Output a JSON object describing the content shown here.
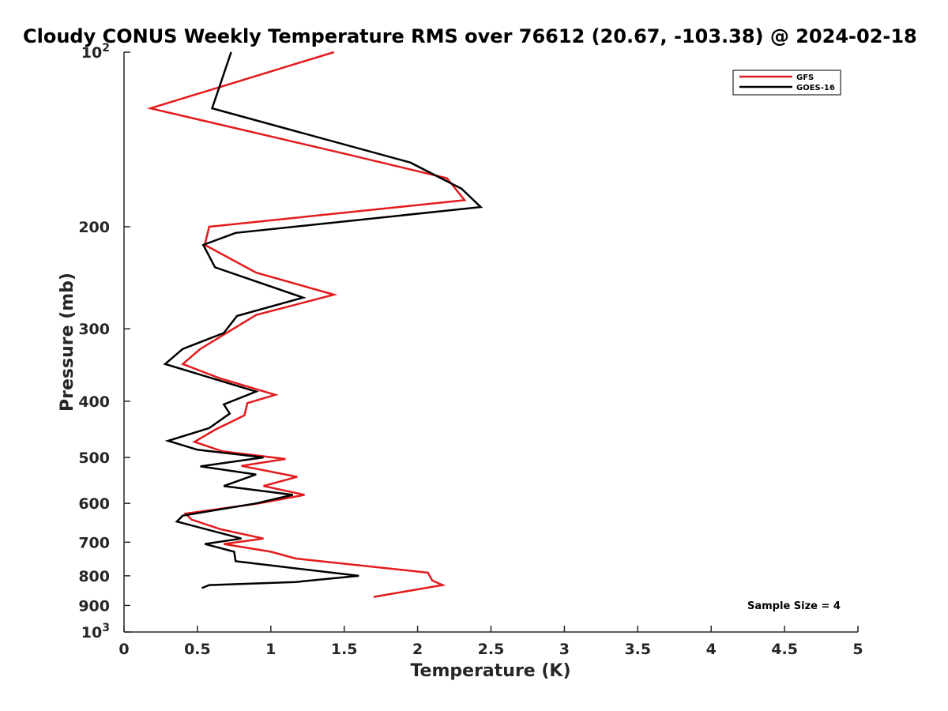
{
  "chart_data": {
    "type": "line",
    "title": "Cloudy CONUS Weekly Temperature RMS over 76612 (20.67, -103.38) @ 2024-02-18",
    "xlabel": "Temperature (K)",
    "ylabel": "Pressure (mb)",
    "xlim": [
      0,
      5
    ],
    "ylim": [
      1000,
      100
    ],
    "yscale": "log",
    "x_ticks": [
      0,
      0.5,
      1,
      1.5,
      2,
      2.5,
      3,
      3.5,
      4,
      4.5,
      5
    ],
    "x_tick_labels": [
      "0",
      "0.5",
      "1",
      "1.5",
      "2",
      "2.5",
      "3",
      "3.5",
      "4",
      "4.5",
      "5"
    ],
    "y_ticks": [
      100,
      200,
      300,
      400,
      500,
      600,
      700,
      800,
      900,
      1000
    ],
    "y_tick_labels": [
      {
        "base": "10",
        "exp": "2"
      },
      {
        "base": "200",
        "exp": ""
      },
      {
        "base": "300",
        "exp": ""
      },
      {
        "base": "400",
        "exp": ""
      },
      {
        "base": "500",
        "exp": ""
      },
      {
        "base": "600",
        "exp": ""
      },
      {
        "base": "700",
        "exp": ""
      },
      {
        "base": "800",
        "exp": ""
      },
      {
        "base": "900",
        "exp": ""
      },
      {
        "base": "10",
        "exp": "3"
      }
    ],
    "grid": false,
    "legend_position": "top-right",
    "series": [
      {
        "name": "GFS",
        "color": "#e41a1c",
        "points": [
          [
            1.43,
            100
          ],
          [
            0.18,
            125
          ],
          [
            1.52,
            150
          ],
          [
            2.2,
            165
          ],
          [
            2.32,
            180
          ],
          [
            0.58,
            200
          ],
          [
            0.55,
            215
          ],
          [
            0.9,
            240
          ],
          [
            1.43,
            262
          ],
          [
            0.9,
            284
          ],
          [
            0.52,
            325
          ],
          [
            0.4,
            345
          ],
          [
            0.65,
            365
          ],
          [
            1.03,
            390
          ],
          [
            0.84,
            403
          ],
          [
            0.82,
            423
          ],
          [
            0.62,
            448
          ],
          [
            0.48,
            470
          ],
          [
            0.67,
            488
          ],
          [
            1.1,
            503
          ],
          [
            0.8,
            517
          ],
          [
            1.18,
            540
          ],
          [
            0.95,
            560
          ],
          [
            1.23,
            580
          ],
          [
            0.92,
            600
          ],
          [
            0.42,
            625
          ],
          [
            0.46,
            640
          ],
          [
            0.66,
            665
          ],
          [
            0.95,
            690
          ],
          [
            0.68,
            705
          ],
          [
            1.0,
            727
          ],
          [
            1.17,
            747
          ],
          [
            2.07,
            790
          ],
          [
            2.1,
            815
          ],
          [
            2.17,
            830
          ],
          [
            1.7,
            870
          ]
        ]
      },
      {
        "name": "GOES-16",
        "color": "#000000",
        "points": [
          [
            0.73,
            100
          ],
          [
            0.6,
            125
          ],
          [
            1.95,
            155
          ],
          [
            2.3,
            172
          ],
          [
            2.43,
            185
          ],
          [
            0.76,
            205
          ],
          [
            0.54,
            215
          ],
          [
            0.62,
            235
          ],
          [
            1.22,
            265
          ],
          [
            0.77,
            285
          ],
          [
            0.68,
            305
          ],
          [
            0.4,
            325
          ],
          [
            0.28,
            345
          ],
          [
            0.9,
            385
          ],
          [
            0.68,
            405
          ],
          [
            0.72,
            420
          ],
          [
            0.58,
            445
          ],
          [
            0.3,
            468
          ],
          [
            0.5,
            485
          ],
          [
            0.95,
            500
          ],
          [
            0.52,
            518
          ],
          [
            0.9,
            535
          ],
          [
            0.68,
            560
          ],
          [
            1.15,
            580
          ],
          [
            0.9,
            600
          ],
          [
            0.4,
            630
          ],
          [
            0.36,
            645
          ],
          [
            0.8,
            690
          ],
          [
            0.55,
            705
          ],
          [
            0.75,
            727
          ],
          [
            0.76,
            755
          ],
          [
            1.6,
            800
          ],
          [
            1.17,
            820
          ],
          [
            0.58,
            830
          ],
          [
            0.53,
            840
          ]
        ]
      }
    ],
    "annotations": [
      "Sample Size = 4"
    ]
  }
}
